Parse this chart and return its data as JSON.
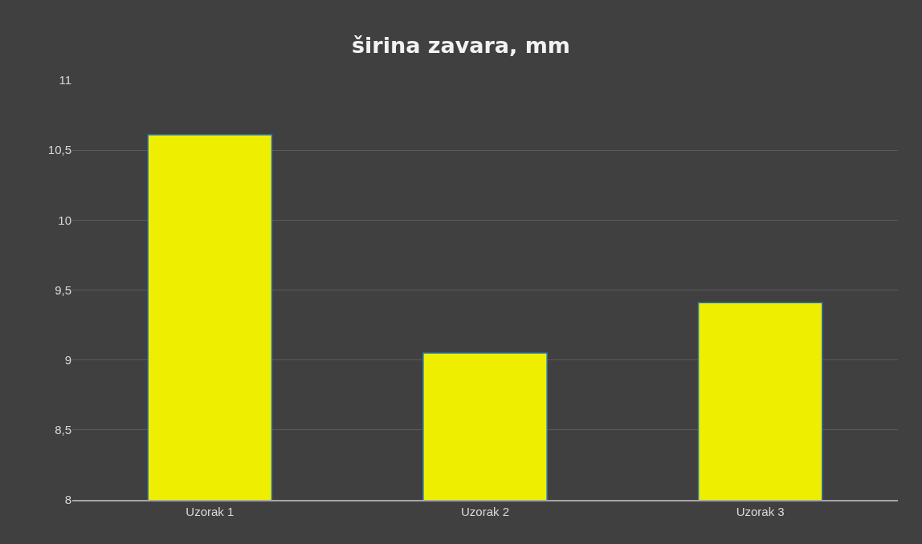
{
  "chart_data": {
    "type": "bar",
    "title": "širina zavara, mm",
    "categories": [
      "Uzorak 1",
      "Uzorak 2",
      "Uzorak 3"
    ],
    "values": [
      10.61,
      9.05,
      9.41
    ],
    "color": "#eeee00",
    "ylim": [
      8,
      11
    ],
    "yticks": [
      8,
      {
        "value": 8.5,
        "label": "8,5"
      },
      9,
      {
        "value": 9.5,
        "label": "9,5"
      },
      10,
      {
        "value": 10.5,
        "label": "10,5"
      },
      11
    ],
    "grid": "y"
  }
}
